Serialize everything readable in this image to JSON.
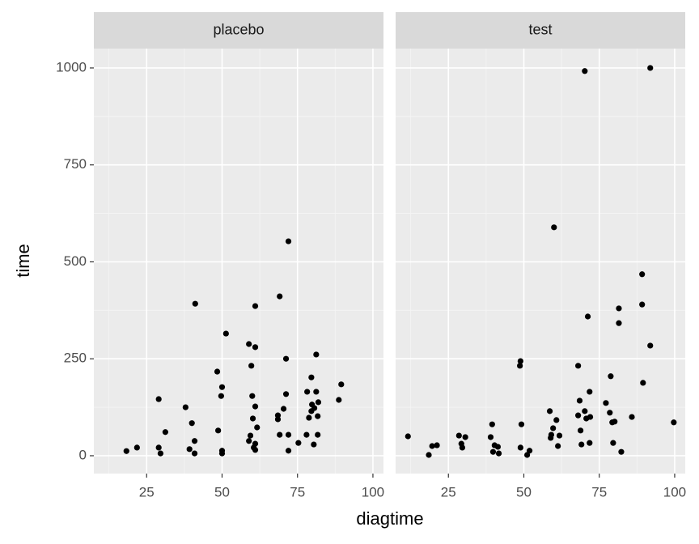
{
  "chart_data": [
    {
      "type": "scatter",
      "title": "placebo",
      "xlabel": "diagtime",
      "ylabel": "time",
      "color": "#000000",
      "grid": true,
      "x": [
        18.3,
        21.8,
        29,
        29,
        29.6,
        31.2,
        37.9,
        40,
        41.1,
        40.9,
        39.2,
        40.9,
        48.4,
        48.7,
        50,
        49.7,
        50,
        50,
        51.3,
        58.9,
        59.7,
        59.4,
        58.9,
        60,
        60.2,
        61,
        61,
        61,
        61.6,
        61,
        60.5,
        61,
        69.1,
        68.5,
        69.1,
        68.5,
        70.4,
        71.2,
        71.2,
        72,
        72,
        72,
        75.3,
        78,
        78.2,
        78.8,
        79.6,
        79.6,
        80.6,
        81.2,
        81.2,
        81.7,
        80.4,
        81.9,
        81.7,
        79.8,
        88.7,
        89.5
      ],
      "y": [
        12,
        21,
        146,
        21,
        6,
        61,
        125,
        84,
        392,
        38,
        17,
        6,
        217,
        65,
        177,
        154,
        13,
        6,
        315,
        288,
        232,
        52,
        38,
        154,
        96,
        127,
        280,
        386,
        73,
        31,
        21,
        15,
        411,
        104,
        54,
        94,
        121,
        250,
        159,
        553,
        54,
        13,
        33,
        54,
        165,
        98,
        202,
        115,
        123,
        165,
        261,
        54,
        29,
        138,
        102,
        132,
        144,
        184
      ],
      "xlim": [
        7.5,
        103.5
      ],
      "ylim": [
        -46,
        1050
      ],
      "xticks": [
        25,
        50,
        75,
        100
      ],
      "yticks": [
        0,
        250,
        500,
        750,
        1000
      ]
    },
    {
      "type": "scatter",
      "title": "test",
      "color": "#000000",
      "grid": true,
      "x": [
        11.6,
        18.5,
        19.6,
        21.2,
        28.5,
        29.6,
        30.6,
        29.3,
        39.5,
        39,
        40.3,
        39.8,
        41.4,
        41.7,
        48.9,
        48.7,
        49.2,
        48.9,
        51.1,
        51.9,
        58.6,
        59.1,
        58.9,
        60,
        59.7,
        60.8,
        61.3,
        61.8,
        68,
        68.5,
        68,
        68.8,
        69.1,
        70.2,
        70.2,
        70.7,
        71.2,
        71.8,
        72,
        71.8,
        77.2,
        78.5,
        78.8,
        79.3,
        80.1,
        79.6,
        81.5,
        81.5,
        82.3,
        85.8,
        89.2,
        89.2,
        89.5,
        91.9,
        91.9,
        99.7
      ],
      "y": [
        50,
        2,
        25,
        27,
        52,
        21,
        48,
        31,
        81,
        48,
        27,
        10,
        23,
        6,
        244,
        232,
        81,
        21,
        2,
        13,
        115,
        54,
        46,
        589,
        71,
        92,
        25,
        52,
        232,
        142,
        104,
        65,
        29,
        992,
        115,
        96,
        359,
        165,
        100,
        33,
        136,
        111,
        205,
        86,
        88,
        33,
        380,
        342,
        10,
        100,
        468,
        390,
        188,
        1000,
        284,
        86
      ],
      "xlim": [
        7.5,
        103.5
      ],
      "ylim": [
        -46,
        1050
      ],
      "xticks": [
        25,
        50,
        75,
        100
      ],
      "yticks": [
        0,
        250,
        500,
        750,
        1000
      ]
    }
  ]
}
